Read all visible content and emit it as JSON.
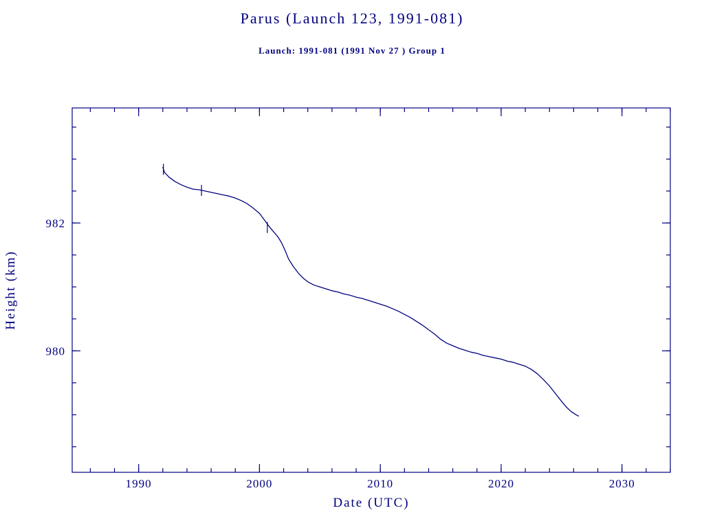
{
  "header": {
    "title": "Parus (Launch 123, 1991-081)",
    "subtitle": "Launch: 1991-081  (1991 Nov 27 )  Group 1"
  },
  "chart_data": {
    "type": "line",
    "title": "Parus (Launch 123, 1991-081)",
    "subtitle": "Launch: 1991-081  (1991 Nov 27 )  Group 1",
    "xlabel": "Date (UTC)",
    "ylabel": "Height (km)",
    "xlim": [
      1984.5,
      2034.0
    ],
    "ylim": [
      978.1,
      983.8
    ],
    "x_major_ticks": [
      1990,
      2000,
      2010,
      2020,
      2030
    ],
    "x_minor_step": 2,
    "y_major_ticks": [
      980,
      982
    ],
    "y_minor_step": 0.5,
    "grid": false,
    "legend": "none",
    "line_color": "#000080",
    "axis_color": "#000080",
    "series": [
      {
        "name": "orbital-height",
        "points": [
          [
            1992.0,
            982.87
          ],
          [
            1992.15,
            982.79
          ],
          [
            1992.5,
            982.72
          ],
          [
            1993.0,
            982.65
          ],
          [
            1993.5,
            982.6
          ],
          [
            1994.0,
            982.56
          ],
          [
            1994.5,
            982.53
          ],
          [
            1995.0,
            982.52
          ],
          [
            1995.5,
            982.5
          ],
          [
            1996.0,
            982.48
          ],
          [
            1996.5,
            982.46
          ],
          [
            1997.0,
            982.44
          ],
          [
            1997.5,
            982.42
          ],
          [
            1998.0,
            982.39
          ],
          [
            1998.5,
            982.35
          ],
          [
            1999.0,
            982.3
          ],
          [
            1999.5,
            982.23
          ],
          [
            2000.0,
            982.15
          ],
          [
            2000.4,
            982.05
          ],
          [
            2000.7,
            981.97
          ],
          [
            2001.0,
            981.9
          ],
          [
            2001.5,
            981.79
          ],
          [
            2001.8,
            981.7
          ],
          [
            2002.1,
            981.58
          ],
          [
            2002.4,
            981.44
          ],
          [
            2002.8,
            981.32
          ],
          [
            2003.2,
            981.22
          ],
          [
            2003.6,
            981.14
          ],
          [
            2004.0,
            981.08
          ],
          [
            2004.5,
            981.03
          ],
          [
            2005.0,
            981.0
          ],
          [
            2005.5,
            980.97
          ],
          [
            2006.0,
            980.94
          ],
          [
            2006.5,
            980.92
          ],
          [
            2007.0,
            980.89
          ],
          [
            2007.5,
            980.87
          ],
          [
            2008.0,
            980.84
          ],
          [
            2008.5,
            980.82
          ],
          [
            2009.0,
            980.79
          ],
          [
            2009.5,
            980.76
          ],
          [
            2010.0,
            980.73
          ],
          [
            2010.5,
            980.7
          ],
          [
            2011.0,
            980.66
          ],
          [
            2011.5,
            980.62
          ],
          [
            2012.0,
            980.57
          ],
          [
            2012.5,
            980.52
          ],
          [
            2013.0,
            980.46
          ],
          [
            2013.5,
            980.4
          ],
          [
            2014.0,
            980.33
          ],
          [
            2014.5,
            980.26
          ],
          [
            2015.0,
            980.18
          ],
          [
            2015.5,
            980.12
          ],
          [
            2016.0,
            980.08
          ],
          [
            2016.5,
            980.04
          ],
          [
            2017.0,
            980.01
          ],
          [
            2017.5,
            979.98
          ],
          [
            2018.0,
            979.96
          ],
          [
            2018.5,
            979.93
          ],
          [
            2019.0,
            979.91
          ],
          [
            2019.5,
            979.89
          ],
          [
            2020.0,
            979.87
          ],
          [
            2020.5,
            979.84
          ],
          [
            2021.0,
            979.82
          ],
          [
            2021.5,
            979.79
          ],
          [
            2022.0,
            979.76
          ],
          [
            2022.5,
            979.71
          ],
          [
            2023.0,
            979.64
          ],
          [
            2023.5,
            979.55
          ],
          [
            2024.0,
            979.45
          ],
          [
            2024.5,
            979.33
          ],
          [
            2025.0,
            979.21
          ],
          [
            2025.4,
            979.12
          ],
          [
            2025.8,
            979.05
          ],
          [
            2026.2,
            979.0
          ],
          [
            2026.4,
            978.98
          ]
        ]
      }
    ],
    "event_markers": [
      [
        1992.05,
        982.84
      ],
      [
        1995.2,
        982.51
      ],
      [
        2000.65,
        981.93
      ]
    ]
  }
}
